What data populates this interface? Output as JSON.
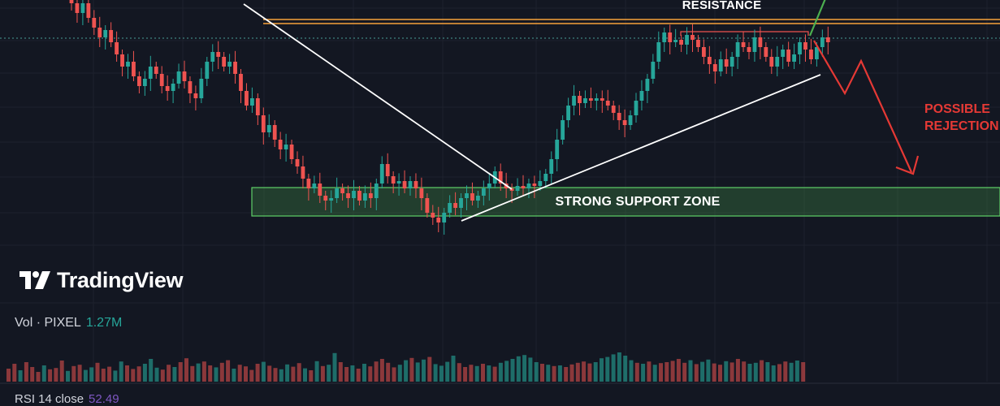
{
  "chart_data": {
    "type": "candlestick",
    "symbol": "PIXEL",
    "annotations": {
      "resistance": "RESISTANCE",
      "support_zone": "STRONG SUPPORT ZONE",
      "possible_rejection": [
        "POSSIBLE",
        "REJECTION"
      ]
    },
    "colors": {
      "up": "#26a69a",
      "down": "#ef5350",
      "background": "#131722",
      "resistance_line": "#f7a23b",
      "support_zone": "#4caf50",
      "trendline": "#ffffff",
      "rejection_arrow": "#e53935",
      "breakout_arrow": "#4caf50",
      "rsi": "#7e57c2"
    },
    "candles": [
      [
        0.9,
        0.86
      ],
      [
        0.86,
        0.82
      ],
      [
        0.82,
        0.86
      ],
      [
        0.86,
        0.8
      ],
      [
        0.8,
        0.76
      ],
      [
        0.76,
        0.72
      ],
      [
        0.72,
        0.75
      ],
      [
        0.75,
        0.7
      ],
      [
        0.7,
        0.65
      ],
      [
        0.65,
        0.6
      ],
      [
        0.6,
        0.62
      ],
      [
        0.62,
        0.56
      ],
      [
        0.56,
        0.52
      ],
      [
        0.52,
        0.55
      ],
      [
        0.55,
        0.6
      ],
      [
        0.6,
        0.57
      ],
      [
        0.57,
        0.52
      ],
      [
        0.52,
        0.5
      ],
      [
        0.5,
        0.53
      ],
      [
        0.53,
        0.58
      ],
      [
        0.58,
        0.54
      ],
      [
        0.54,
        0.49
      ],
      [
        0.49,
        0.47
      ],
      [
        0.47,
        0.55
      ],
      [
        0.55,
        0.62
      ],
      [
        0.62,
        0.66
      ],
      [
        0.66,
        0.64
      ],
      [
        0.64,
        0.6
      ],
      [
        0.6,
        0.62
      ],
      [
        0.62,
        0.57
      ],
      [
        0.57,
        0.5
      ],
      [
        0.5,
        0.44
      ],
      [
        0.44,
        0.47
      ],
      [
        0.47,
        0.4
      ],
      [
        0.4,
        0.33
      ],
      [
        0.33,
        0.36
      ],
      [
        0.36,
        0.3
      ],
      [
        0.3,
        0.26
      ],
      [
        0.26,
        0.28
      ],
      [
        0.28,
        0.22
      ],
      [
        0.22,
        0.19
      ],
      [
        0.19,
        0.14
      ],
      [
        0.14,
        0.1
      ],
      [
        0.1,
        0.12
      ],
      [
        0.12,
        0.07
      ],
      [
        0.07,
        0.05
      ],
      [
        0.05,
        0.06
      ],
      [
        0.06,
        0.1
      ],
      [
        0.1,
        0.08
      ],
      [
        0.08,
        0.06
      ],
      [
        0.06,
        0.09
      ],
      [
        0.09,
        0.05
      ],
      [
        0.05,
        0.08
      ],
      [
        0.08,
        0.06
      ],
      [
        0.06,
        0.12
      ],
      [
        0.12,
        0.2
      ],
      [
        0.2,
        0.15
      ],
      [
        0.15,
        0.12
      ],
      [
        0.12,
        0.13
      ],
      [
        0.13,
        0.1
      ],
      [
        0.1,
        0.13
      ],
      [
        0.13,
        0.1
      ],
      [
        0.1,
        0.06
      ],
      [
        0.06,
        0.0
      ],
      [
        0.0,
        -0.02
      ],
      [
        -0.02,
        -0.04
      ],
      [
        -0.04,
        0.0
      ],
      [
        0.0,
        0.04
      ],
      [
        0.04,
        0.02
      ],
      [
        0.02,
        0.06
      ],
      [
        0.06,
        0.08
      ],
      [
        0.08,
        0.05
      ],
      [
        0.05,
        0.07
      ],
      [
        0.07,
        0.1
      ],
      [
        0.1,
        0.12
      ],
      [
        0.12,
        0.17
      ],
      [
        0.17,
        0.12
      ],
      [
        0.12,
        0.1
      ],
      [
        0.1,
        0.09
      ],
      [
        0.09,
        0.11
      ],
      [
        0.11,
        0.1
      ],
      [
        0.1,
        0.12
      ],
      [
        0.12,
        0.11
      ],
      [
        0.11,
        0.13
      ],
      [
        0.13,
        0.16
      ],
      [
        0.16,
        0.22
      ],
      [
        0.22,
        0.3
      ],
      [
        0.3,
        0.38
      ],
      [
        0.38,
        0.44
      ],
      [
        0.44,
        0.48
      ],
      [
        0.48,
        0.45
      ],
      [
        0.45,
        0.47
      ],
      [
        0.47,
        0.46
      ],
      [
        0.46,
        0.47
      ],
      [
        0.47,
        0.46
      ],
      [
        0.46,
        0.44
      ],
      [
        0.44,
        0.41
      ],
      [
        0.41,
        0.38
      ],
      [
        0.38,
        0.36
      ],
      [
        0.36,
        0.4
      ],
      [
        0.4,
        0.46
      ],
      [
        0.46,
        0.5
      ],
      [
        0.5,
        0.55
      ],
      [
        0.55,
        0.62
      ],
      [
        0.62,
        0.7
      ],
      [
        0.7,
        0.74
      ],
      [
        0.74,
        0.7
      ],
      [
        0.7,
        0.71
      ],
      [
        0.71,
        0.69
      ],
      [
        0.69,
        0.73
      ],
      [
        0.73,
        0.71
      ],
      [
        0.71,
        0.68
      ],
      [
        0.68,
        0.64
      ],
      [
        0.64,
        0.61
      ],
      [
        0.61,
        0.58
      ],
      [
        0.58,
        0.63
      ],
      [
        0.63,
        0.6
      ],
      [
        0.6,
        0.64
      ],
      [
        0.64,
        0.7
      ],
      [
        0.7,
        0.68
      ],
      [
        0.68,
        0.66
      ],
      [
        0.66,
        0.72
      ],
      [
        0.72,
        0.68
      ],
      [
        0.68,
        0.64
      ],
      [
        0.64,
        0.6
      ],
      [
        0.6,
        0.64
      ],
      [
        0.64,
        0.67
      ],
      [
        0.67,
        0.62
      ],
      [
        0.62,
        0.65
      ],
      [
        0.65,
        0.7
      ],
      [
        0.7,
        0.67
      ],
      [
        0.67,
        0.63
      ],
      [
        0.63,
        0.68
      ],
      [
        0.68,
        0.72
      ],
      [
        0.72,
        0.7
      ]
    ],
    "volume": [
      0.4,
      0.55,
      0.35,
      0.6,
      0.45,
      0.3,
      0.5,
      0.38,
      0.42,
      0.65,
      0.33,
      0.48,
      0.52,
      0.36,
      0.44,
      0.58,
      0.4,
      0.46,
      0.34,
      0.62,
      0.5,
      0.39,
      0.47,
      0.55,
      0.7,
      0.43,
      0.37,
      0.52,
      0.45,
      0.6,
      0.72,
      0.48,
      0.56,
      0.62,
      0.5,
      0.44,
      0.58,
      0.66,
      0.4,
      0.52,
      0.47,
      0.36,
      0.55,
      0.61,
      0.49,
      0.42,
      0.38,
      0.53,
      0.46,
      0.57,
      0.41,
      0.35,
      0.63,
      0.48,
      0.52,
      0.88,
      0.6,
      0.45,
      0.5,
      0.4,
      0.55,
      0.47,
      0.62,
      0.7,
      0.58,
      0.44,
      0.52,
      0.66,
      0.73,
      0.59,
      0.68,
      0.76,
      0.54,
      0.49,
      0.61,
      0.8,
      0.57,
      0.45,
      0.52,
      0.48,
      0.55,
      0.5,
      0.46,
      0.58,
      0.64,
      0.7,
      0.78,
      0.82,
      0.74,
      0.6,
      0.55,
      0.52,
      0.48,
      0.5,
      0.45,
      0.53,
      0.58,
      0.62,
      0.56,
      0.6,
      0.72,
      0.76,
      0.84,
      0.9,
      0.8,
      0.66,
      0.58,
      0.55,
      0.62,
      0.52,
      0.57,
      0.6,
      0.64,
      0.7,
      0.58,
      0.66,
      0.54,
      0.61,
      0.68,
      0.56,
      0.52,
      0.63,
      0.59,
      0.7,
      0.62,
      0.55,
      0.58,
      0.66,
      0.6,
      0.5,
      0.54,
      0.62,
      0.58,
      0.65,
      0.6
    ]
  },
  "brand": {
    "name": "TradingView"
  },
  "volume_legend": {
    "label": "Vol · PIXEL",
    "value": "1.27M"
  },
  "rsi_legend": {
    "label": "RSI 14 close",
    "value": "52.49"
  }
}
